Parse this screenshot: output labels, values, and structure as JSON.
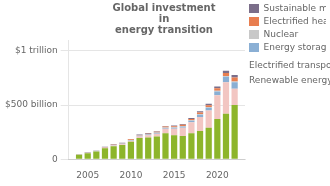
{
  "chart_data": {
    "type": "bar",
    "title": "Global investment\nin\nenergy transition",
    "x": [
      2004,
      2005,
      2006,
      2007,
      2008,
      2009,
      2010,
      2011,
      2012,
      2013,
      2014,
      2015,
      2016,
      2017,
      2018,
      2019,
      2020,
      2021,
      2022
    ],
    "series": [
      {
        "name": "Renewable energy",
        "color": "#8DB52B",
        "values": [
          40,
          55,
          70,
          100,
          120,
          130,
          160,
          195,
          200,
          210,
          240,
          220,
          215,
          240,
          260,
          290,
          370,
          420,
          500
        ]
      },
      {
        "name": "Electrified transport",
        "color": "#F2C6C2",
        "values": [
          2,
          3,
          4,
          5,
          6,
          8,
          10,
          15,
          20,
          25,
          40,
          60,
          75,
          100,
          130,
          160,
          220,
          290,
          150
        ]
      },
      {
        "name": "Energy storage",
        "color": "#8aafd4",
        "values": [
          1,
          1,
          2,
          2,
          3,
          4,
          5,
          6,
          7,
          8,
          9,
          10,
          12,
          15,
          20,
          25,
          35,
          50,
          60
        ]
      },
      {
        "name": "Nuclear",
        "color": "#C8C8C8",
        "values": [
          1,
          1,
          1,
          2,
          2,
          2,
          3,
          3,
          3,
          4,
          4,
          4,
          5,
          5,
          6,
          6,
          7,
          8,
          8
        ]
      },
      {
        "name": "Electrified heat",
        "color": "#E87E50",
        "values": [
          1,
          2,
          2,
          3,
          3,
          4,
          5,
          5,
          6,
          7,
          8,
          9,
          10,
          12,
          15,
          18,
          22,
          28,
          35
        ]
      },
      {
        "name": "Sustainable materials",
        "color": "#7B6E8A",
        "values": [
          1,
          1,
          2,
          2,
          3,
          3,
          4,
          4,
          5,
          5,
          6,
          7,
          8,
          9,
          11,
          13,
          16,
          20,
          25
        ]
      }
    ],
    "annotations": [
      "Electrified transport",
      "Renewable energy"
    ],
    "stacked": true,
    "xlim": [
      2002.8,
      2023.2
    ],
    "xticks": [
      2005,
      2010,
      2015,
      2020
    ],
    "ylim": [
      0,
      1100
    ],
    "yticks": [
      0,
      {
        "value": 500,
        "label": "$500 billion"
      },
      {
        "value": 1000,
        "label": "$1 trillion"
      }
    ],
    "grid": true,
    "legend": "upper right"
  }
}
